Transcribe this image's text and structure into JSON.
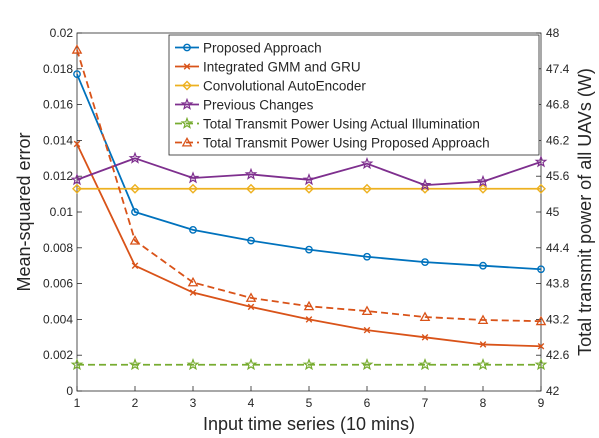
{
  "chart_data": {
    "type": "line",
    "xlabel": "Input time series (10 mins)",
    "ylabel_left": "Mean-squared error",
    "ylabel_right": "Total transmit power of all UAVs (W)",
    "x": [
      1,
      2,
      3,
      4,
      5,
      6,
      7,
      8,
      9
    ],
    "xlim": [
      1,
      9
    ],
    "ylim_left": [
      0,
      0.02
    ],
    "ylim_right": [
      42,
      48
    ],
    "x_ticks": [
      "1",
      "2",
      "3",
      "4",
      "5",
      "6",
      "7",
      "8",
      "9"
    ],
    "y_ticks_left": [
      "0",
      "0.002",
      "0.004",
      "0.006",
      "0.008",
      "0.01",
      "0.012",
      "0.014",
      "0.016",
      "0.018",
      "0.02"
    ],
    "y_ticks_right": [
      "42",
      "42.6",
      "43.2",
      "43.8",
      "44.4",
      "45",
      "45.6",
      "46.2",
      "46.8",
      "47.4",
      "48"
    ],
    "grid": false,
    "legend_position": "top-right",
    "series": [
      {
        "name": "Proposed Approach",
        "axis": "left",
        "color": "#0072bd",
        "marker": "circle",
        "dash": "solid",
        "values": [
          0.0177,
          0.01,
          0.009,
          0.0084,
          0.0079,
          0.0075,
          0.0072,
          0.007,
          0.0068
        ]
      },
      {
        "name": "Integrated GMM and GRU",
        "axis": "left",
        "color": "#d95319",
        "marker": "x",
        "dash": "solid",
        "values": [
          0.0138,
          0.007,
          0.0055,
          0.0047,
          0.004,
          0.0034,
          0.003,
          0.0026,
          0.0025
        ]
      },
      {
        "name": "Convolutional AutoEncoder",
        "axis": "left",
        "color": "#edb120",
        "marker": "diamond",
        "dash": "solid",
        "values": [
          0.0113,
          0.0113,
          0.0113,
          0.0113,
          0.0113,
          0.0113,
          0.0113,
          0.0113,
          0.0113
        ]
      },
      {
        "name": "Previous Changes",
        "axis": "left",
        "color": "#7e2f8e",
        "marker": "star",
        "dash": "solid",
        "values": [
          0.0118,
          0.013,
          0.0119,
          0.0121,
          0.0118,
          0.0127,
          0.0115,
          0.0117,
          0.0128
        ]
      },
      {
        "name": "Total Transmit Power Using Actual Illumination",
        "axis": "right",
        "color": "#77ac30",
        "marker": "star",
        "dash": "dashed",
        "values": [
          42.44,
          42.44,
          42.44,
          42.44,
          42.44,
          42.44,
          42.44,
          42.44,
          42.44
        ]
      },
      {
        "name": "Total Transmit Power Using Proposed Approach",
        "axis": "right",
        "color": "#d95319",
        "marker": "triangle",
        "dash": "dashed",
        "values": [
          47.72,
          44.52,
          43.82,
          43.56,
          43.42,
          43.34,
          43.24,
          43.19,
          43.17
        ]
      }
    ]
  }
}
